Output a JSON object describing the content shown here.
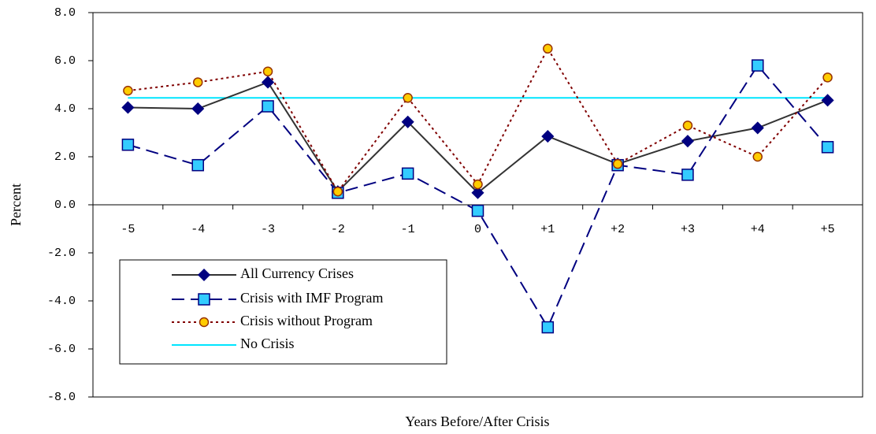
{
  "chart_data": {
    "type": "line",
    "y_label": "Percent",
    "x_label": "Years Before/After Crisis",
    "categories": [
      "-5",
      "-4",
      "-3",
      "-2",
      "-1",
      "0",
      "+1",
      "+2",
      "+3",
      "+4",
      "+5"
    ],
    "ylim": [
      -8,
      8
    ],
    "yticks": [
      {
        "value": -8,
        "label": "-8.0"
      },
      {
        "value": -6,
        "label": "-6.0"
      },
      {
        "value": -4,
        "label": "-4.0"
      },
      {
        "value": -2,
        "label": "-2.0"
      },
      {
        "value": 0,
        "label": "0.0"
      },
      {
        "value": 2,
        "label": "2.0"
      },
      {
        "value": 4,
        "label": "4.0"
      },
      {
        "value": 6,
        "label": "6.0"
      },
      {
        "value": 8,
        "label": "8.0"
      }
    ],
    "grid": false,
    "legend": "lower-left",
    "series": [
      {
        "name": "All Currency Crises",
        "color": "#333333",
        "marker": "diamond",
        "marker_fill": "#000080",
        "marker_stroke": "#000080",
        "dash": "solid",
        "values": [
          4.05,
          4.0,
          5.1,
          0.55,
          3.45,
          0.5,
          2.85,
          1.7,
          2.65,
          3.2,
          4.35
        ]
      },
      {
        "name": "Crisis with IMF Program",
        "color": "#000080",
        "marker": "square",
        "marker_fill": "#33ccff",
        "marker_stroke": "#000080",
        "dash": "dashed",
        "values": [
          2.5,
          1.65,
          4.1,
          0.5,
          1.3,
          -0.25,
          -5.1,
          1.65,
          1.25,
          5.8,
          2.4
        ]
      },
      {
        "name": "Crisis without Program",
        "color": "#800000",
        "marker": "circle",
        "marker_fill": "#ffcc00",
        "marker_stroke": "#993300",
        "dash": "dotted",
        "values": [
          4.75,
          5.1,
          5.55,
          0.55,
          4.45,
          0.85,
          6.5,
          1.7,
          3.3,
          2.0,
          5.3
        ]
      },
      {
        "name": "No Crisis",
        "color": "#00e5ff",
        "marker": "none",
        "dash": "solid",
        "values": [
          4.45,
          4.45,
          4.45,
          4.45,
          4.45,
          4.45,
          4.45,
          4.45,
          4.45,
          4.45,
          4.45
        ]
      }
    ]
  }
}
